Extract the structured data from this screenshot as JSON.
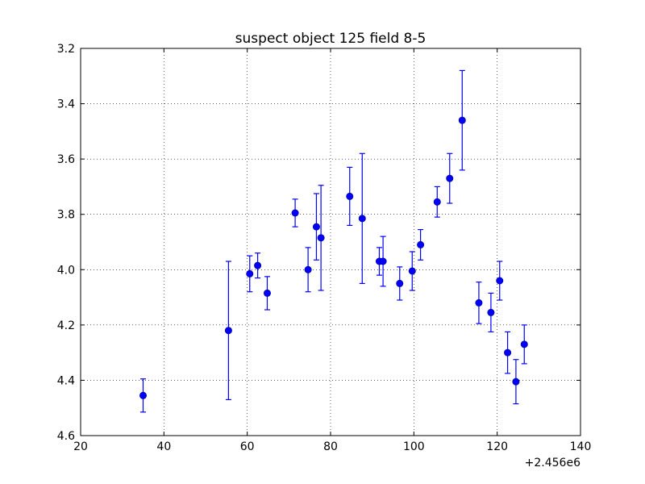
{
  "chart_data": {
    "type": "scatter",
    "title": "suspect object 125 field 8-5",
    "xlabel": "",
    "ylabel": "",
    "xlim": [
      20,
      140
    ],
    "ylim": [
      4.6,
      3.2
    ],
    "y_inverted": true,
    "grid": true,
    "x_offset_label": "+2.456e6",
    "xticks": [
      "20",
      "40",
      "60",
      "80",
      "100",
      "120",
      "140"
    ],
    "yticks": [
      "3.2",
      "3.4",
      "3.6",
      "3.8",
      "4.0",
      "4.2",
      "4.4",
      "4.6"
    ],
    "color": "#0000ff",
    "series": [
      {
        "x": [
          35,
          55.5,
          60.6,
          62.5,
          64.8,
          71.5,
          74.6,
          76.6,
          77.7,
          84.6,
          87.6,
          91.7,
          92.6,
          96.6,
          99.6,
          101.6,
          105.6,
          108.6,
          111.6,
          115.6,
          118.5,
          120.6,
          122.5,
          124.5,
          126.5
        ],
        "y": [
          4.455,
          4.22,
          4.015,
          3.985,
          4.085,
          3.795,
          4.0,
          3.845,
          3.885,
          3.735,
          3.815,
          3.97,
          3.97,
          4.05,
          4.005,
          3.91,
          3.755,
          3.67,
          3.46,
          4.12,
          4.155,
          4.04,
          4.3,
          4.405,
          4.27
        ],
        "yerr": [
          0.06,
          0.25,
          0.065,
          0.045,
          0.06,
          0.05,
          0.08,
          0.12,
          0.19,
          0.105,
          0.235,
          0.05,
          0.09,
          0.06,
          0.07,
          0.055,
          0.055,
          0.09,
          0.18,
          0.075,
          0.07,
          0.07,
          0.075,
          0.08,
          0.07
        ]
      }
    ]
  }
}
